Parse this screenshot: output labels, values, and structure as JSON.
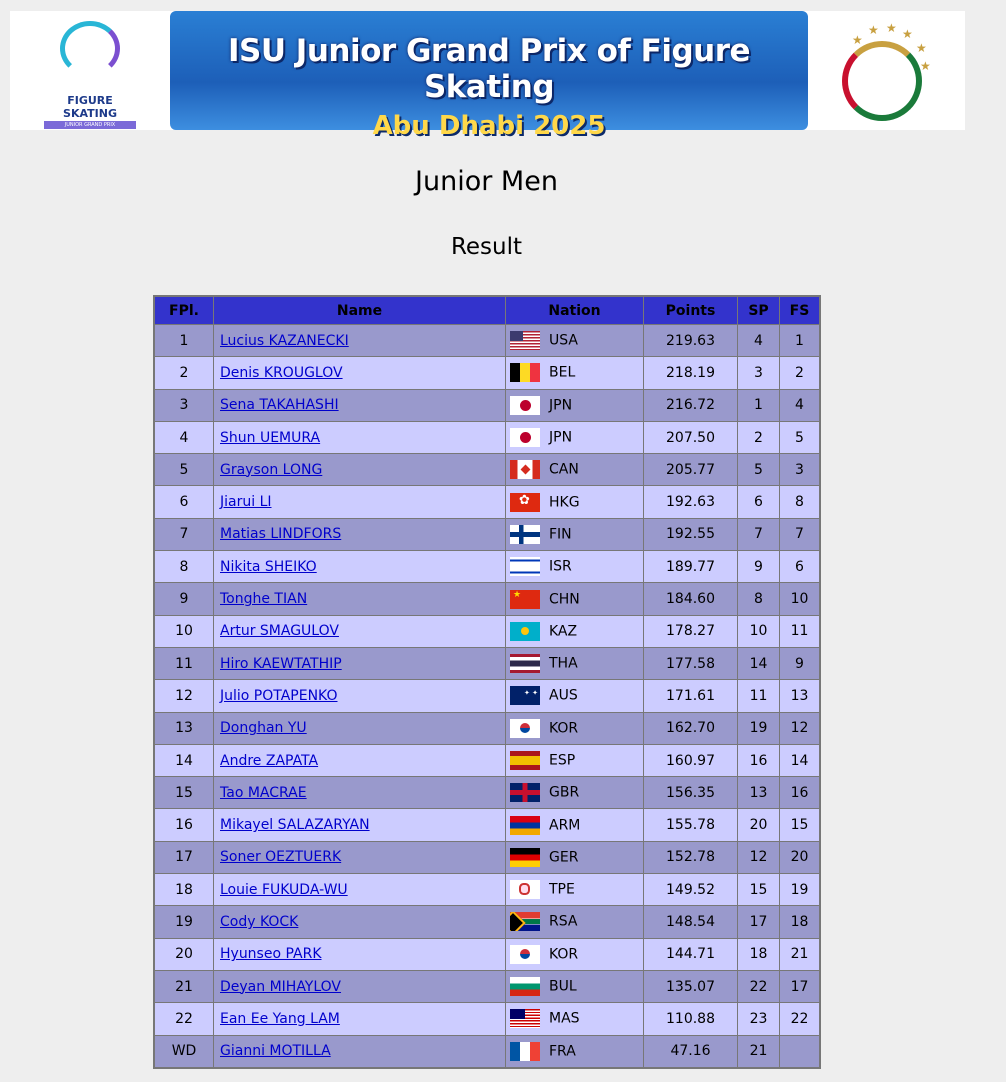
{
  "banner": {
    "title_line1": "ISU Junior Grand Prix of Figure Skating",
    "title_line2": "Abu Dhabi 2025",
    "left_logo": {
      "line1": "ISU",
      "line2": "FIGURE SKATING",
      "line3": "JUNIOR GRAND PRIX"
    }
  },
  "page_title": "Junior Men",
  "subtitle": "Result",
  "colors": {
    "header": "#3333cc",
    "row_odd": "#9999cc",
    "row_even": "#ccccff",
    "link": "#0000cc",
    "background": "#eeeeee"
  },
  "table": {
    "headers": {
      "rank": "FPl.",
      "name": "Name",
      "nation": "Nation",
      "points": "Points",
      "sp": "SP",
      "fs": "FS"
    },
    "rows": [
      {
        "rank": "1",
        "name": "Lucius KAZANECKI",
        "nation": "USA",
        "points": "219.63",
        "sp": "4",
        "fs": "1"
      },
      {
        "rank": "2",
        "name": "Denis KROUGLOV",
        "nation": "BEL",
        "points": "218.19",
        "sp": "3",
        "fs": "2"
      },
      {
        "rank": "3",
        "name": "Sena TAKAHASHI",
        "nation": "JPN",
        "points": "216.72",
        "sp": "1",
        "fs": "4"
      },
      {
        "rank": "4",
        "name": "Shun UEMURA",
        "nation": "JPN",
        "points": "207.50",
        "sp": "2",
        "fs": "5"
      },
      {
        "rank": "5",
        "name": "Grayson LONG",
        "nation": "CAN",
        "points": "205.77",
        "sp": "5",
        "fs": "3"
      },
      {
        "rank": "6",
        "name": "Jiarui LI",
        "nation": "HKG",
        "points": "192.63",
        "sp": "6",
        "fs": "8"
      },
      {
        "rank": "7",
        "name": "Matias LINDFORS",
        "nation": "FIN",
        "points": "192.55",
        "sp": "7",
        "fs": "7"
      },
      {
        "rank": "8",
        "name": "Nikita SHEIKO",
        "nation": "ISR",
        "points": "189.77",
        "sp": "9",
        "fs": "6"
      },
      {
        "rank": "9",
        "name": "Tonghe TIAN",
        "nation": "CHN",
        "points": "184.60",
        "sp": "8",
        "fs": "10"
      },
      {
        "rank": "10",
        "name": "Artur SMAGULOV",
        "nation": "KAZ",
        "points": "178.27",
        "sp": "10",
        "fs": "11"
      },
      {
        "rank": "11",
        "name": "Hiro KAEWTATHIP",
        "nation": "THA",
        "points": "177.58",
        "sp": "14",
        "fs": "9"
      },
      {
        "rank": "12",
        "name": "Julio POTAPENKO",
        "nation": "AUS",
        "points": "171.61",
        "sp": "11",
        "fs": "13"
      },
      {
        "rank": "13",
        "name": "Donghan YU",
        "nation": "KOR",
        "points": "162.70",
        "sp": "19",
        "fs": "12"
      },
      {
        "rank": "14",
        "name": "Andre ZAPATA",
        "nation": "ESP",
        "points": "160.97",
        "sp": "16",
        "fs": "14"
      },
      {
        "rank": "15",
        "name": "Tao MACRAE",
        "nation": "GBR",
        "points": "156.35",
        "sp": "13",
        "fs": "16"
      },
      {
        "rank": "16",
        "name": "Mikayel SALAZARYAN",
        "nation": "ARM",
        "points": "155.78",
        "sp": "20",
        "fs": "15"
      },
      {
        "rank": "17",
        "name": "Soner OEZTUERK",
        "nation": "GER",
        "points": "152.78",
        "sp": "12",
        "fs": "20"
      },
      {
        "rank": "18",
        "name": "Louie FUKUDA-WU",
        "nation": "TPE",
        "points": "149.52",
        "sp": "15",
        "fs": "19"
      },
      {
        "rank": "19",
        "name": "Cody KOCK",
        "nation": "RSA",
        "points": "148.54",
        "sp": "17",
        "fs": "18"
      },
      {
        "rank": "20",
        "name": "Hyunseo PARK",
        "nation": "KOR",
        "points": "144.71",
        "sp": "18",
        "fs": "21"
      },
      {
        "rank": "21",
        "name": "Deyan MIHAYLOV",
        "nation": "BUL",
        "points": "135.07",
        "sp": "22",
        "fs": "17"
      },
      {
        "rank": "22",
        "name": "Ean Ee Yang LAM",
        "nation": "MAS",
        "points": "110.88",
        "sp": "23",
        "fs": "22"
      },
      {
        "rank": "WD",
        "name": "Gianni MOTILLA",
        "nation": "FRA",
        "points": "47.16",
        "sp": "21",
        "fs": ""
      }
    ]
  }
}
